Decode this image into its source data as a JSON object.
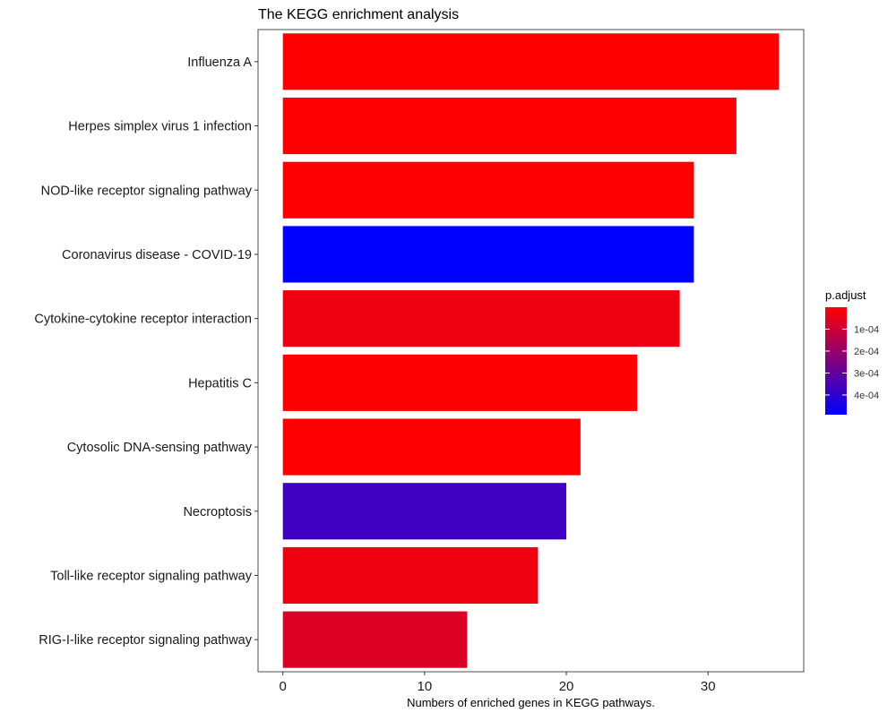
{
  "chart_data": {
    "type": "bar",
    "orientation": "horizontal",
    "title": "The KEGG enrichment analysis",
    "xlabel": "Numbers of enriched genes in KEGG pathways.",
    "ylabel": "",
    "xlim": [
      -1.75,
      36.75
    ],
    "xticks": [
      0,
      10,
      20,
      30
    ],
    "categories": [
      "Influenza A",
      "Herpes simplex virus 1 infection",
      "NOD-like receptor signaling pathway",
      "Coronavirus disease - COVID-19",
      "Cytokine-cytokine receptor interaction",
      "Hepatitis C",
      "Cytosolic DNA-sensing pathway",
      "Necroptosis",
      "Toll-like receptor signaling pathway",
      "RIG-I-like receptor signaling pathway"
    ],
    "values": [
      35,
      32,
      29,
      29,
      28,
      25,
      21,
      20,
      18,
      13
    ],
    "p_adjust": [
      1e-07,
      2e-06,
      1e-06,
      0.00049,
      3e-05,
      3e-06,
      1e-06,
      0.00037,
      3e-05,
      7e-05
    ],
    "grid": false,
    "legend": {
      "title": "p.adjust",
      "placement": "right",
      "range": [
        0.0,
        0.00049
      ],
      "color_low": "#ff0000",
      "color_high": "#0000ff",
      "ticks": [
        {
          "value": 0.0001,
          "label": "1e-04"
        },
        {
          "value": 0.0002,
          "label": "2e-04"
        },
        {
          "value": 0.0003,
          "label": "3e-04"
        },
        {
          "value": 0.0004,
          "label": "4e-04"
        }
      ]
    }
  }
}
